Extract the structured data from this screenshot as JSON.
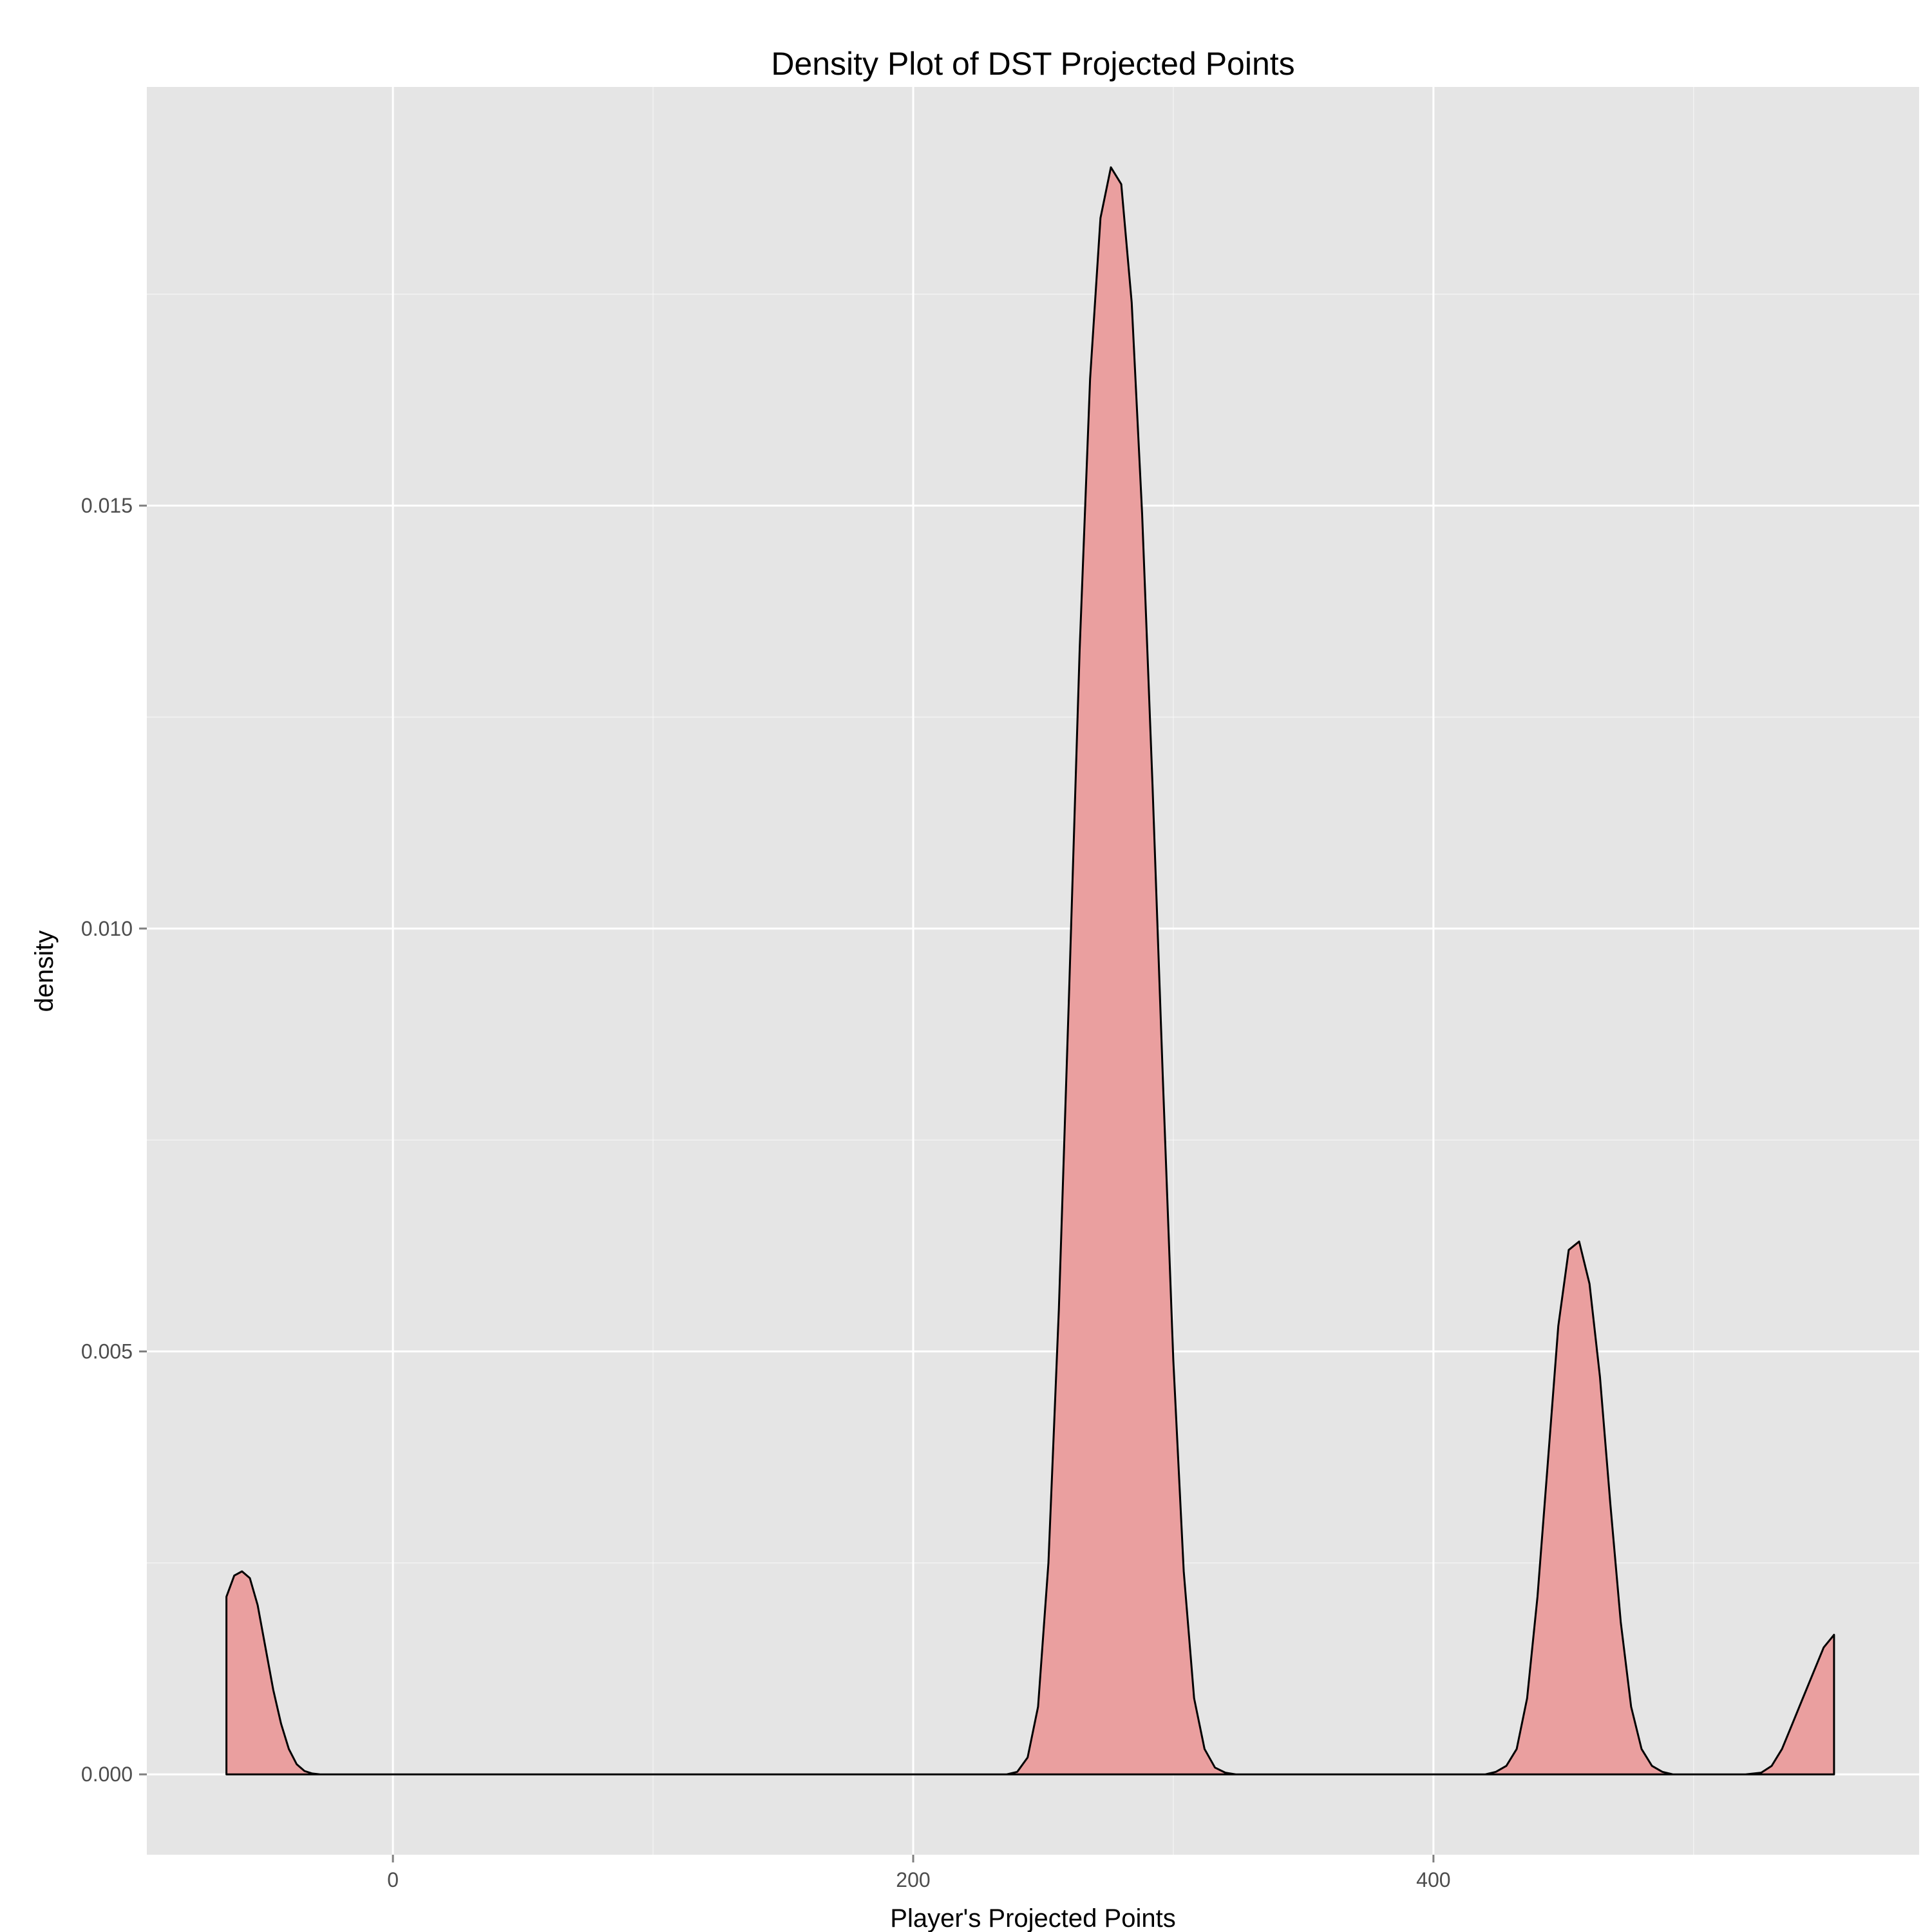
{
  "chart_data": {
    "type": "area",
    "title": "Density Plot of DST Projected Points",
    "xlabel": "Player's Projected Points",
    "ylabel": "density",
    "xlim": [
      -94.6,
      586.7
    ],
    "ylim": [
      -0.00095,
      0.01995
    ],
    "x_ticks": [
      0,
      200,
      400
    ],
    "x_tick_labels": [
      "0",
      "200",
      "400"
    ],
    "x_minor_ticks": [
      100,
      300,
      500
    ],
    "y_ticks": [
      0.0,
      0.005,
      0.01,
      0.015
    ],
    "y_tick_labels": [
      "0.000",
      "0.005",
      "0.010",
      "0.015"
    ],
    "y_minor_ticks": [
      0.0025,
      0.0075,
      0.0125,
      0.0175
    ],
    "grid": true,
    "legend": "none",
    "colors": {
      "fill": "#ea9f9f",
      "line": "#000000",
      "panel": "#e5e5e5",
      "grid": "#ffffff"
    },
    "series": [
      {
        "x": [
          -64,
          -61,
          -58,
          -55,
          -52,
          -49,
          -46,
          -43,
          -40,
          -37,
          -34,
          -31,
          -28,
          -25,
          -20,
          0,
          100,
          200,
          236,
          240,
          244,
          248,
          252,
          256,
          260,
          264,
          268,
          272,
          276,
          280,
          284,
          288,
          292,
          296,
          300,
          304,
          308,
          312,
          316,
          320,
          324,
          328,
          332,
          336,
          400,
          420,
          424,
          428,
          432,
          436,
          440,
          444,
          448,
          452,
          456,
          460,
          464,
          468,
          472,
          476,
          480,
          484,
          488,
          492,
          496,
          500,
          520,
          526,
          530,
          534,
          538,
          542,
          546,
          550,
          554
        ],
        "y": [
          0.0021,
          0.00235,
          0.0024,
          0.00232,
          0.002,
          0.0015,
          0.001,
          0.0006,
          0.0003,
          0.00012,
          4e-05,
          1e-05,
          0.0,
          0.0,
          0.0,
          0.0,
          0.0,
          0.0,
          0.0,
          3e-05,
          0.0002,
          0.0008,
          0.0025,
          0.0055,
          0.0093,
          0.0133,
          0.0165,
          0.0184,
          0.019,
          0.0188,
          0.0174,
          0.0149,
          0.0117,
          0.0082,
          0.0049,
          0.0024,
          0.0009,
          0.0003,
          8e-05,
          2e-05,
          0.0,
          0.0,
          0.0,
          0.0,
          0.0,
          0.0,
          3e-05,
          0.0001,
          0.0003,
          0.0009,
          0.0021,
          0.0037,
          0.0053,
          0.0062,
          0.0063,
          0.0058,
          0.0047,
          0.0032,
          0.0018,
          0.0008,
          0.0003,
          0.0001,
          3e-05,
          0.0,
          0.0,
          0.0,
          0.0,
          2e-05,
          0.0001,
          0.0003,
          0.0006,
          0.0009,
          0.0012,
          0.0015,
          0.00165
        ]
      }
    ]
  }
}
